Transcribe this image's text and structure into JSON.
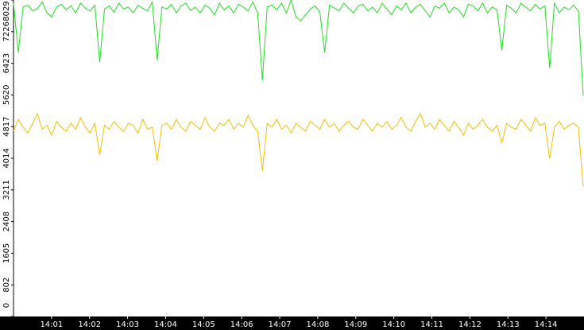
{
  "chart_data": {
    "type": "line",
    "xlim": [
      0,
      15
    ],
    "xticks": [
      {
        "value": 1,
        "label": "14:01"
      },
      {
        "value": 2,
        "label": "14:02"
      },
      {
        "value": 3,
        "label": "14:03"
      },
      {
        "value": 4,
        "label": "14:04"
      },
      {
        "value": 5,
        "label": "14:05"
      },
      {
        "value": 6,
        "label": "14:06"
      },
      {
        "value": 7,
        "label": "14:07"
      },
      {
        "value": 8,
        "label": "14:08"
      },
      {
        "value": 9,
        "label": "14:09"
      },
      {
        "value": 10,
        "label": "14:10"
      },
      {
        "value": 11,
        "label": "14:11"
      },
      {
        "value": 12,
        "label": "14:12"
      },
      {
        "value": 13,
        "label": "14:13"
      },
      {
        "value": 14,
        "label": "14:14"
      }
    ],
    "ylim": [
      0,
      8029
    ],
    "yticks": [
      0,
      802,
      1605,
      2408,
      3211,
      4014,
      4817,
      5620,
      6423,
      7226,
      8029
    ],
    "series": [
      {
        "color": "#22dd22",
        "values": [
          7950,
          6700,
          7850,
          7900,
          7750,
          7820,
          7980,
          7700,
          7600,
          7850,
          7920,
          7780,
          7880,
          7700,
          7950,
          7820,
          7750,
          7900,
          6450,
          7800,
          7880,
          7720,
          7950,
          7800,
          7850,
          7700,
          7900,
          7820,
          7750,
          7980,
          6500,
          7850,
          7800,
          7920,
          7700,
          7880,
          7950,
          7760,
          7850,
          7700,
          7900,
          7820,
          7650,
          7950,
          7780,
          7880,
          7700,
          7920,
          7850,
          7750,
          7980,
          7700,
          6000,
          7850,
          7900,
          7780,
          7950,
          7700,
          8029,
          7600,
          7500,
          7650,
          7800,
          7880,
          7720,
          6700,
          7900,
          7830,
          7750,
          7950,
          7820,
          7700,
          7880,
          7920,
          7750,
          7850,
          7700,
          7950,
          7800,
          7650,
          7880,
          7780,
          7950,
          7700,
          7850,
          7920,
          7750,
          7600,
          7880,
          7820,
          7950,
          7700,
          7850,
          7780,
          7600,
          7920,
          7880,
          7750,
          7950,
          7700,
          7850,
          7780,
          6750,
          7900,
          7820,
          7700,
          7950,
          7850,
          7750,
          7920,
          7800,
          7880,
          6300,
          7950,
          7700,
          7850,
          7780,
          7900,
          7750,
          5600
        ]
      },
      {
        "color": "#f0c000",
        "values": [
          4700,
          5000,
          4800,
          4650,
          4900,
          5150,
          4750,
          4850,
          4600,
          4950,
          4800,
          4700,
          4900,
          4750,
          5050,
          4800,
          4650,
          4900,
          4100,
          4850,
          4750,
          4950,
          4800,
          4700,
          4900,
          4850,
          4650,
          5000,
          4750,
          4800,
          3950,
          4850,
          4900,
          4750,
          5000,
          4800,
          4700,
          4950,
          4850,
          4750,
          5050,
          4800,
          4700,
          4900,
          4850,
          5000,
          4750,
          4900,
          4800,
          5100,
          4850,
          4700,
          3700,
          4900,
          4800,
          5000,
          4750,
          4850,
          4650,
          4900,
          4800,
          4700,
          4950,
          4850,
          4750,
          5000,
          4800,
          4900,
          4700,
          4850,
          4950,
          4800,
          4750,
          5000,
          4850,
          4700,
          4900,
          4800,
          4950,
          4750,
          4850,
          5050,
          4800,
          4700,
          4950,
          5150,
          4800,
          4900,
          4750,
          5000,
          4850,
          4700,
          4950,
          4800,
          4600,
          4900,
          4750,
          4850,
          5000,
          4800,
          4700,
          4850,
          4400,
          4900,
          4800,
          4750,
          5000,
          4850,
          4700,
          5050,
          4850,
          4900,
          4000,
          4800,
          4950,
          4750,
          4850,
          4900,
          4800,
          3300
        ]
      }
    ]
  }
}
